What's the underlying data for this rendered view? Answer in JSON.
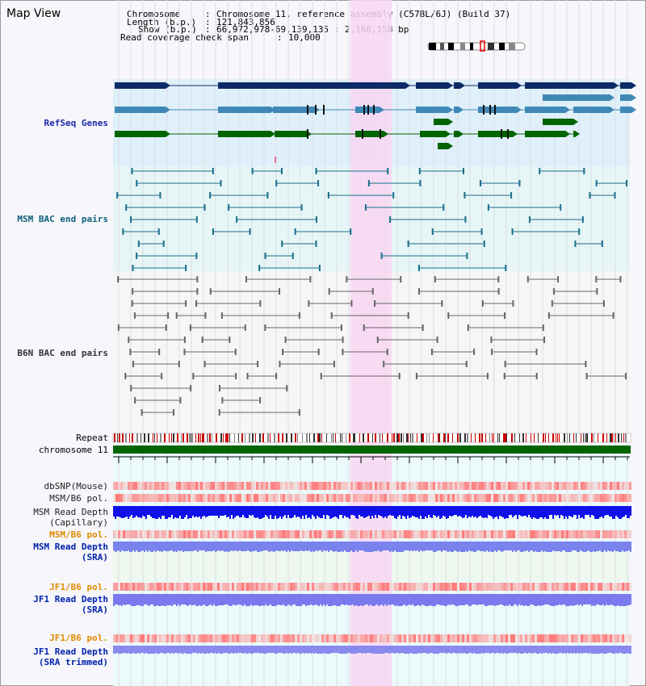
{
  "header": {
    "title": "Map View"
  },
  "info": {
    "chromosome_label": "Chromosome",
    "chromosome_value": "Chromosome 11, reference assembly (C57BL/6J) (Build 37)",
    "length_label": "Length (b.p.)",
    "length_value": "121,843,856",
    "show_label": "Show (b.p.)",
    "show_value": "66,972,978-69,139,135 : 2,166,158 bp",
    "coverage_label": "Read coverage check span",
    "coverage_value": "10,000"
  },
  "tracks": {
    "refseq": "RefSeq Genes",
    "msm_bac": "MSM BAC end pairs",
    "b6n_bac": "B6N BAC end pairs",
    "repeat": "Repeat",
    "chromosome": "chromosome 11",
    "dbsnp": "dbSNP(Mouse)",
    "msm_b6_pol": "MSM/B6 pol.",
    "msm_depth_cap": "MSM Read Depth\n(Capillary)",
    "msm_b6_pol_sra": "MSM/B6 pol.",
    "msm_depth_sra": "MSM Read Depth\n(SRA)",
    "jf1_b6_pol": "JF1/B6 pol.",
    "jf1_depth_sra": "JF1 Read Depth\n(SRA)",
    "jf1_b6_pol_trim": "JF1/B6 pol.",
    "jf1_depth_trim": "JF1 Read Depth\n(SRA trimmed)"
  },
  "axis": {
    "ticks": [
      "67200000",
      "67600000",
      "68000000",
      "68400000",
      "68800000"
    ]
  },
  "colors": {
    "refseq_dark": "#0c2a66",
    "refseq_light": "#3f88b6",
    "refseq_green": "#006400",
    "msm_bac": "#1a6e8a",
    "b6n_bac": "#666666",
    "highlight": "#f8d6f2",
    "chromosome": "#006400"
  }
}
